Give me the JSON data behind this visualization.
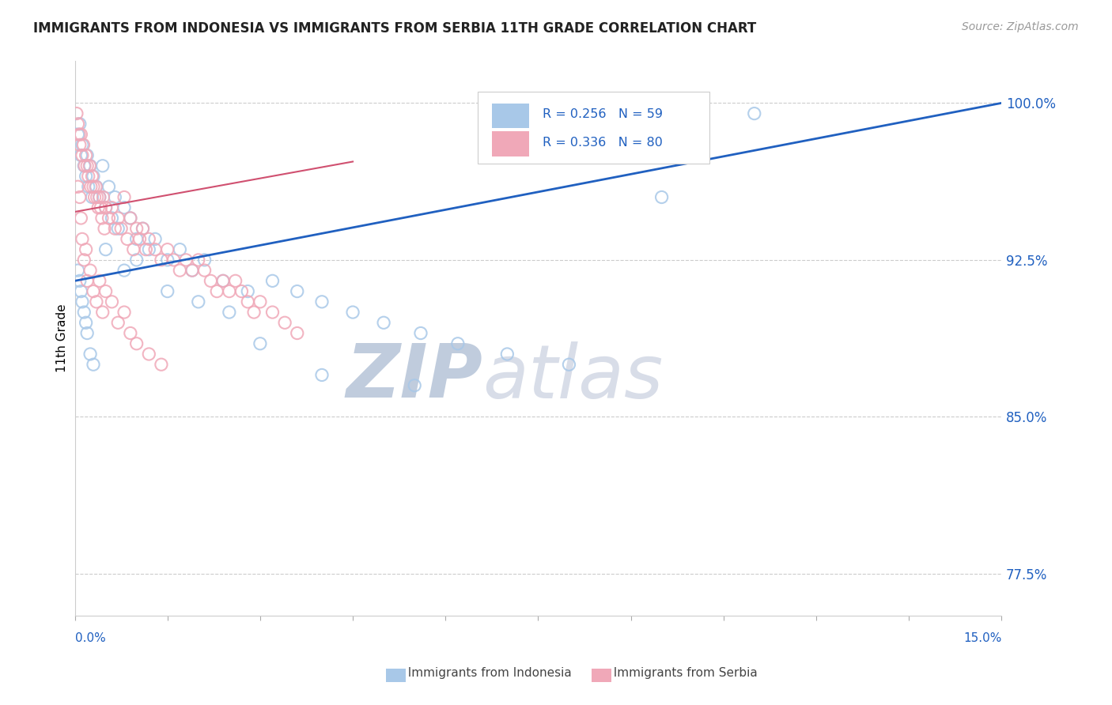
{
  "title": "IMMIGRANTS FROM INDONESIA VS IMMIGRANTS FROM SERBIA 11TH GRADE CORRELATION CHART",
  "source": "Source: ZipAtlas.com",
  "ylabel": "11th Grade",
  "xmin": 0.0,
  "xmax": 15.0,
  "ymin": 75.5,
  "ymax": 102.0,
  "yticks": [
    77.5,
    85.0,
    92.5,
    100.0
  ],
  "ytick_labels": [
    "77.5%",
    "85.0%",
    "92.5%",
    "100.0%"
  ],
  "color_indonesia": "#a8c8e8",
  "color_serbia": "#f0a8b8",
  "line_color_indonesia": "#2060c0",
  "line_color_serbia": "#d05070",
  "R_indonesia": 0.256,
  "N_indonesia": 59,
  "R_serbia": 0.336,
  "N_serbia": 80,
  "watermark_zip": "ZIP",
  "watermark_atlas": "atlas",
  "watermark_color_zip": "#c0ccdd",
  "watermark_color_atlas": "#c0ccdd",
  "legend_text_color": "#2060c0",
  "ind_trend_x0": 0.0,
  "ind_trend_x1": 15.0,
  "ind_trend_y0": 91.5,
  "ind_trend_y1": 100.0,
  "ser_trend_x0": 0.0,
  "ser_trend_x1": 4.5,
  "ser_trend_y0": 94.8,
  "ser_trend_y1": 97.2
}
